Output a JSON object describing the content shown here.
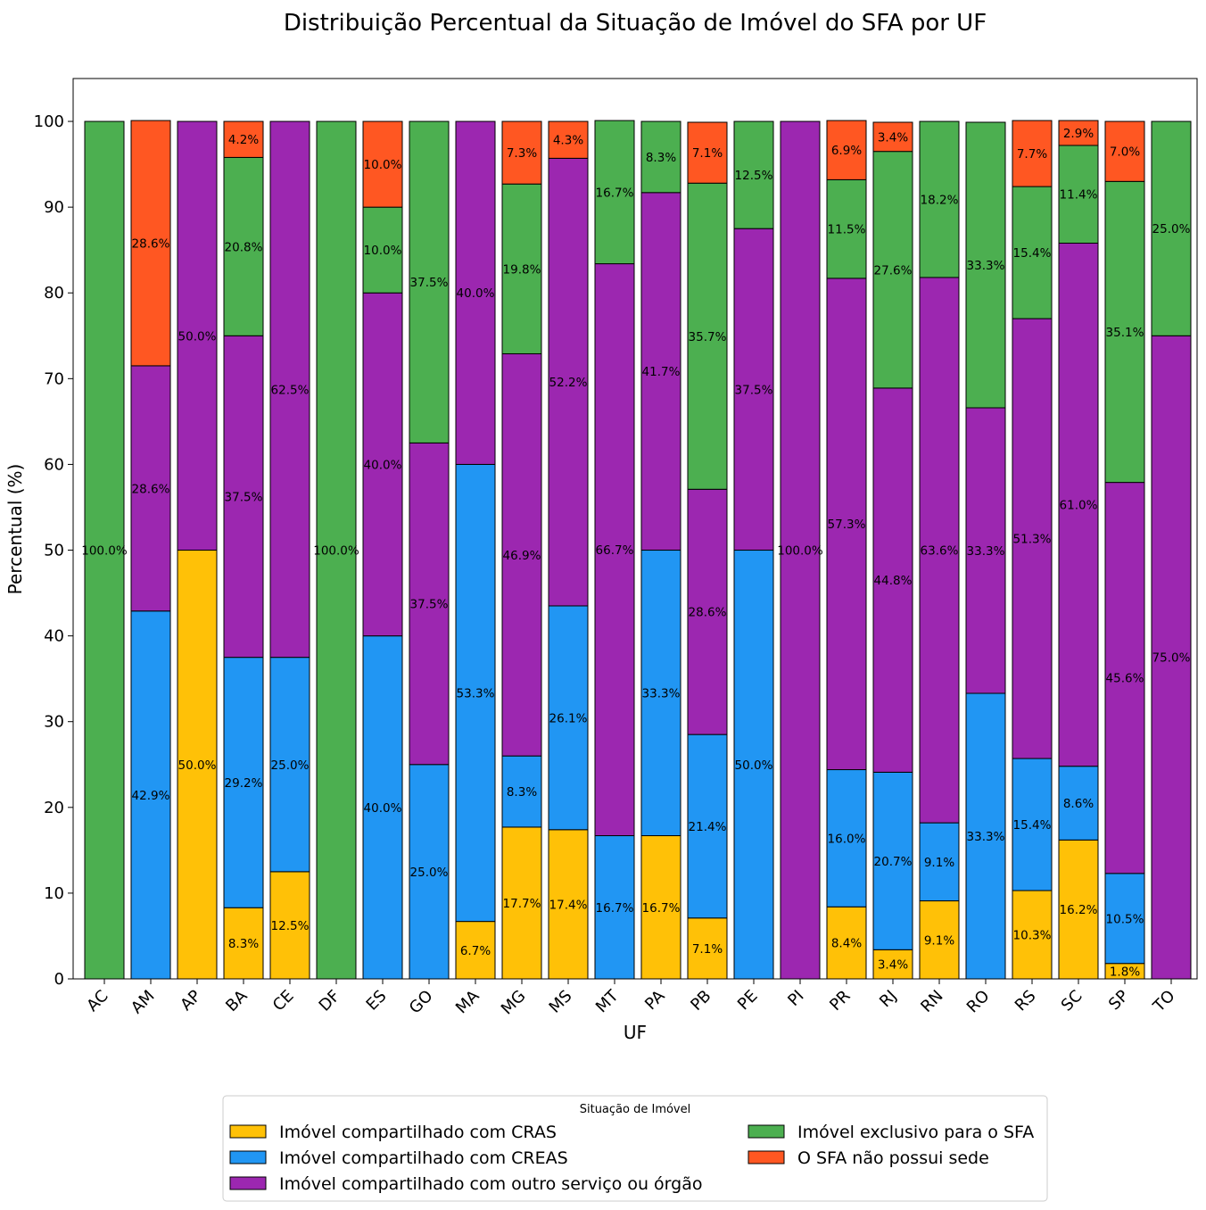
{
  "chart_data": {
    "type": "bar",
    "stacked": true,
    "title": "Distribuição Percentual da Situação de Imóvel do SFA por UF",
    "xlabel": "UF",
    "ylabel": "Percentual (%)",
    "ylim": [
      0,
      105
    ],
    "yticks": [
      "0",
      "10",
      "20",
      "30",
      "40",
      "50",
      "60",
      "70",
      "80",
      "90",
      "100"
    ],
    "grid": false,
    "categories": [
      "AC",
      "AM",
      "AP",
      "BA",
      "CE",
      "DF",
      "ES",
      "GO",
      "MA",
      "MG",
      "MS",
      "MT",
      "PA",
      "PB",
      "PE",
      "PI",
      "PR",
      "RJ",
      "RN",
      "RO",
      "RS",
      "SC",
      "SP",
      "TO"
    ],
    "series": [
      {
        "name": "Imóvel compartilhado com CRAS",
        "color": "#FFC107",
        "values": [
          0,
          0,
          50.0,
          8.3,
          12.5,
          0,
          0,
          0,
          6.7,
          17.7,
          17.4,
          0,
          16.7,
          7.1,
          0,
          0,
          8.4,
          3.4,
          9.1,
          0,
          10.3,
          16.2,
          1.8,
          0
        ],
        "labels": [
          "",
          "",
          "50.0%",
          "8.3%",
          "12.5%",
          "",
          "",
          "",
          "6.7%",
          "17.7%",
          "17.4%",
          "",
          "16.7%",
          "7.1%",
          "",
          "",
          "8.4%",
          "3.4%",
          "9.1%",
          "",
          "10.3%",
          "16.2%",
          "1.8%",
          ""
        ]
      },
      {
        "name": "Imóvel compartilhado com CREAS",
        "color": "#2196F3",
        "values": [
          0,
          42.9,
          0,
          29.2,
          25.0,
          0,
          40.0,
          25.0,
          53.3,
          8.3,
          26.1,
          16.7,
          33.3,
          21.4,
          50.0,
          0,
          16.0,
          20.7,
          9.1,
          33.3,
          15.4,
          8.6,
          10.5,
          0
        ],
        "labels": [
          "",
          "42.9%",
          "",
          "29.2%",
          "25.0%",
          "",
          "40.0%",
          "25.0%",
          "53.3%",
          "8.3%",
          "26.1%",
          "16.7%",
          "33.3%",
          "21.4%",
          "50.0%",
          "",
          "16.0%",
          "20.7%",
          "9.1%",
          "33.3%",
          "15.4%",
          "8.6%",
          "10.5%",
          ""
        ]
      },
      {
        "name": "Imóvel compartilhado com outro serviço ou órgão",
        "color": "#9C27B0",
        "values": [
          0,
          28.6,
          50.0,
          37.5,
          62.5,
          0,
          40.0,
          37.5,
          40.0,
          46.9,
          52.2,
          66.7,
          41.7,
          28.6,
          37.5,
          100.0,
          57.3,
          44.8,
          63.6,
          33.3,
          51.3,
          61.0,
          45.6,
          75.0
        ],
        "labels": [
          "",
          "28.6%",
          "50.0%",
          "37.5%",
          "62.5%",
          "",
          "40.0%",
          "37.5%",
          "40.0%",
          "46.9%",
          "52.2%",
          "66.7%",
          "41.7%",
          "28.6%",
          "37.5%",
          "100.0%",
          "57.3%",
          "44.8%",
          "63.6%",
          "33.3%",
          "51.3%",
          "61.0%",
          "45.6%",
          "75.0%"
        ]
      },
      {
        "name": "Imóvel exclusivo para o SFA",
        "color": "#4CAF50",
        "values": [
          100.0,
          0,
          0,
          20.8,
          0,
          100.0,
          10.0,
          37.5,
          0,
          19.8,
          0,
          16.7,
          8.3,
          35.7,
          12.5,
          0,
          11.5,
          27.6,
          18.2,
          33.3,
          15.4,
          11.4,
          35.1,
          25.0
        ],
        "labels": [
          "100.0%",
          "",
          "",
          "20.8%",
          "",
          "100.0%",
          "10.0%",
          "37.5%",
          "",
          "19.8%",
          "",
          "16.7%",
          "8.3%",
          "35.7%",
          "12.5%",
          "",
          "11.5%",
          "27.6%",
          "18.2%",
          "33.3%",
          "15.4%",
          "11.4%",
          "35.1%",
          "25.0%"
        ]
      },
      {
        "name": "O SFA não possui sede",
        "color": "#FF5722",
        "values": [
          0,
          28.6,
          0,
          4.2,
          0,
          0,
          10.0,
          0,
          0,
          7.3,
          4.3,
          0,
          0,
          7.1,
          0,
          0,
          6.9,
          3.4,
          0,
          0,
          7.7,
          2.9,
          7.0,
          0
        ],
        "labels": [
          "",
          "28.6%",
          "",
          "4.2%",
          "",
          "",
          "10.0%",
          "",
          "",
          "7.3%",
          "4.3%",
          "",
          "",
          "7.1%",
          "",
          "",
          "6.9%",
          "3.4%",
          "",
          "",
          "7.7%",
          "2.9%",
          "7.0%",
          ""
        ]
      }
    ],
    "legend": {
      "title": "Situação de Imóvel",
      "placement": "bottom-center",
      "order": [
        0,
        1,
        2,
        3,
        4
      ]
    }
  }
}
